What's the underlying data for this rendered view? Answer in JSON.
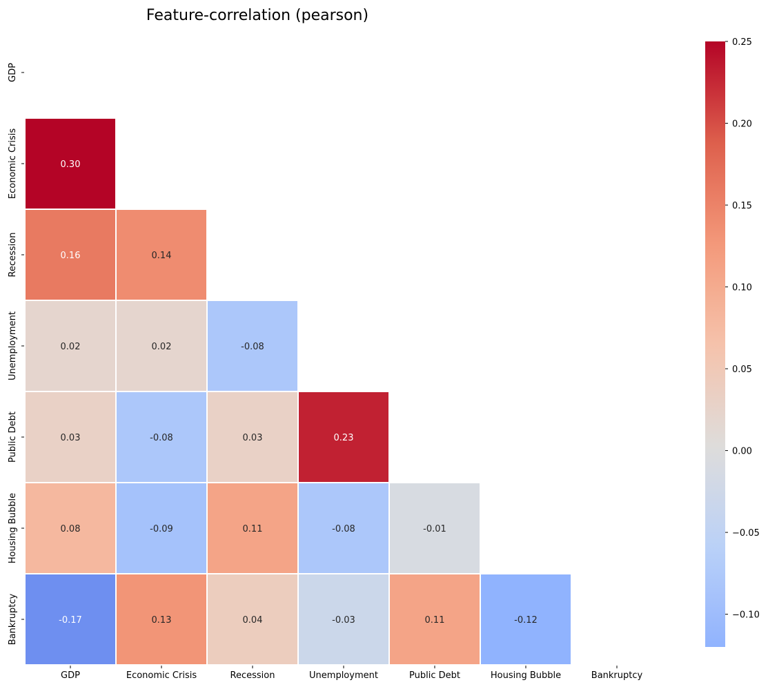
{
  "chart_data": {
    "type": "heatmap",
    "title": "Feature-correlation (pearson)",
    "variables": [
      "GDP",
      "Economic Crisis",
      "Recession",
      "Unemployment",
      "Public Debt",
      "Housing Bubble",
      "Bankruptcy"
    ],
    "matrix": [
      [
        null,
        null,
        null,
        null,
        null,
        null,
        null
      ],
      [
        0.3,
        null,
        null,
        null,
        null,
        null,
        null
      ],
      [
        0.16,
        0.14,
        null,
        null,
        null,
        null,
        null
      ],
      [
        0.02,
        0.02,
        -0.08,
        null,
        null,
        null,
        null
      ],
      [
        0.03,
        -0.08,
        0.03,
        0.23,
        null,
        null,
        null
      ],
      [
        0.08,
        -0.09,
        0.11,
        -0.08,
        -0.01,
        null,
        null
      ],
      [
        -0.17,
        0.13,
        0.04,
        -0.03,
        0.11,
        -0.12,
        null
      ]
    ],
    "mask": "upper-triangle-including-diagonal",
    "colormap": "coolwarm",
    "center": 0.0,
    "vmin": -0.12,
    "vmax": 0.25,
    "colorbar": {
      "position": "right",
      "ticks": [
        0.25,
        0.2,
        0.15,
        0.1,
        0.05,
        0.0,
        -0.05,
        -0.1
      ],
      "tick_labels": [
        "0.25",
        "0.20",
        "0.15",
        "0.10",
        "0.05",
        "0.00",
        "−0.05",
        "−0.10"
      ]
    },
    "annotation_format": "0.00"
  }
}
